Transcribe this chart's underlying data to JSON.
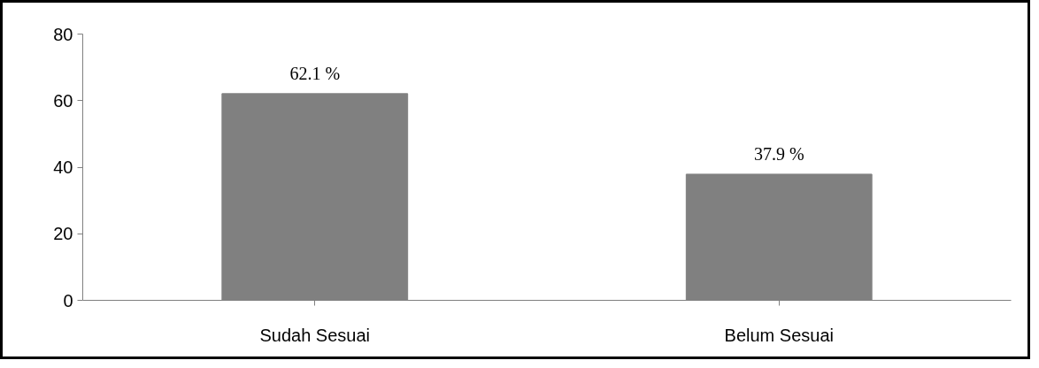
{
  "chart_data": {
    "type": "bar",
    "categories": [
      "Sudah Sesuai",
      "Belum Sesuai"
    ],
    "values": [
      62.1,
      37.9
    ],
    "value_labels": [
      "62.1 %",
      "37.9 %"
    ],
    "color": "#808080",
    "ylim": [
      0,
      80
    ],
    "yticks": [
      0,
      20,
      40,
      60,
      80
    ],
    "grid": false
  }
}
